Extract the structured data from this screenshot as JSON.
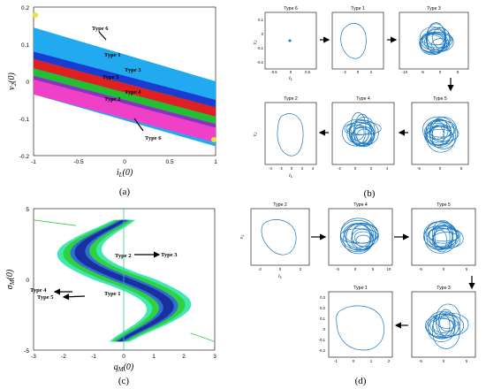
{
  "panels": {
    "a": {
      "label": "(a)",
      "chart_data": {
        "type": "area",
        "xlabel": "i_L(0)",
        "ylabel": "v_2(0)",
        "xlim": [
          -1,
          1
        ],
        "ylim": [
          -0.2,
          0.2
        ],
        "xticks": [
          "-1",
          "-0.5",
          "0",
          "0.5",
          "1"
        ],
        "yticks": [
          "0.2",
          "0.1",
          "0",
          "-0.1",
          "-0.2"
        ],
        "bands": [
          {
            "name": "Type 6",
            "color": "#22aaf0",
            "top": [
              0.145,
              0.0
            ],
            "bottom": [
              -0.035,
              -0.175
            ]
          },
          {
            "name": "Type 1",
            "color": "#1a3cd0",
            "top": [
              0.08,
              -0.05
            ],
            "bottom": [
              0.06,
              -0.07
            ]
          },
          {
            "name": "Type 3",
            "color": "#e02020",
            "top": [
              0.06,
              -0.07
            ],
            "bottom": [
              0.035,
              -0.095
            ]
          },
          {
            "name": "Type 5",
            "color": "#22c030",
            "top": [
              0.035,
              -0.095
            ],
            "bottom": [
              0.015,
              -0.115
            ]
          },
          {
            "name": "Type 4",
            "color": "#9030c0",
            "top": [
              0.015,
              -0.115
            ],
            "bottom": [
              0.005,
              -0.125
            ]
          },
          {
            "name": "Type 2",
            "color": "#f040c8",
            "top": [
              0.005,
              -0.125
            ],
            "bottom": [
              -0.035,
              -0.165
            ]
          }
        ],
        "annotations": [
          "Type 6",
          "Type 1",
          "Type 3",
          "Type 5",
          "Type 4",
          "Type 2",
          "Type 6"
        ]
      }
    },
    "b": {
      "label": "(b)",
      "titles": [
        "Type 6",
        "Type 1",
        "Type 3",
        "Type 2",
        "Type 4",
        "Type 5"
      ],
      "xlabel": "i_L",
      "ylabel": "v_2",
      "ticks_b1": [
        "0.1",
        "0",
        "-0.1",
        "-0.2"
      ],
      "ticks_b1x": [
        "-0.5",
        "0",
        "0.5"
      ],
      "ticks_b2x": [
        "-2",
        "0",
        "2"
      ],
      "ticks_b3x": [
        "-10",
        "-5",
        "0",
        "5"
      ],
      "ticks_b4x": [
        "-4",
        "-2",
        "0",
        "2",
        "4"
      ],
      "ticks_b5x": [
        "-2",
        "0",
        "2",
        "4"
      ],
      "ticks_b6x": [
        "-5",
        "0",
        "5"
      ]
    },
    "c": {
      "label": "(c)",
      "chart_data": {
        "type": "area",
        "xlabel": "q_M(0)",
        "ylabel": "σ_M(0)",
        "xlim": [
          -3,
          3
        ],
        "ylim": [
          -5,
          5
        ],
        "xticks": [
          "-3",
          "-2",
          "-1",
          "0",
          "1",
          "2",
          "3"
        ],
        "yticks": [
          "5",
          "0",
          "-5"
        ],
        "annotations": [
          "Type 2",
          "Type 3",
          "Type 4",
          "Type 5",
          "Type 1"
        ]
      }
    },
    "d": {
      "label": "(d)",
      "titles": [
        "Type 2",
        "Type 4",
        "Type 5",
        "Type 1",
        "Type 3"
      ],
      "xlabel": "i_L",
      "ylabel": "v_2",
      "ticks_d1x": [
        "-2",
        "0",
        "2"
      ],
      "ticks_d2x": [
        "-5",
        "0",
        "5",
        "10"
      ],
      "ticks_d3x": [
        "-5",
        "0",
        "5"
      ],
      "ticks_d4x": [
        "-1",
        "0",
        "1",
        "2"
      ],
      "ticks_d5x": [
        "-5",
        "0",
        "5"
      ],
      "ticks_dy": [
        "0.3",
        "0.2",
        "0.1",
        "0",
        "-0.1",
        "-0.2"
      ]
    }
  }
}
